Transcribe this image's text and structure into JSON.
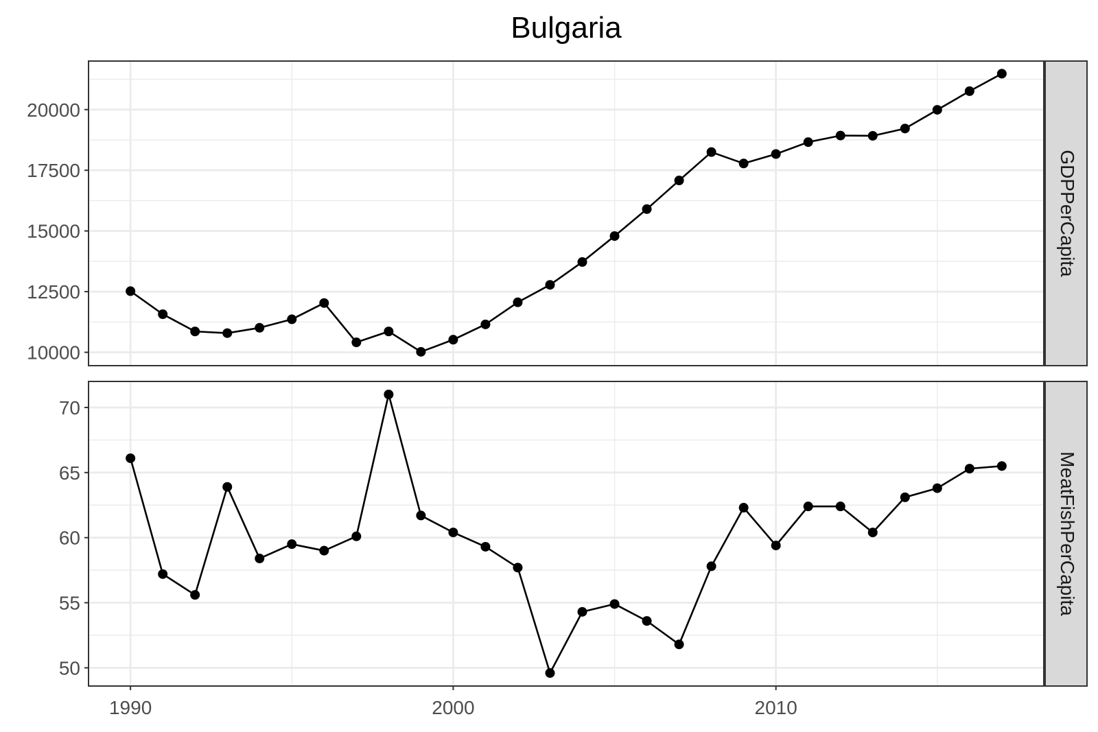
{
  "chart_data": {
    "type": "line",
    "title": "Bulgaria",
    "xlabel": "",
    "ylabel": "",
    "x": [
      1990,
      1991,
      1992,
      1993,
      1994,
      1995,
      1996,
      1997,
      1998,
      1999,
      2000,
      2001,
      2002,
      2003,
      2004,
      2005,
      2006,
      2007,
      2008,
      2009,
      2010,
      2011,
      2012,
      2013,
      2014,
      2015,
      2016,
      2017
    ],
    "x_ticks": [
      "1990",
      "2000",
      "2010"
    ],
    "xlim": [
      1988.7,
      2018.3
    ],
    "grid": true,
    "panels": [
      {
        "strip_label": "GDPPerCapita",
        "ylim": [
          9450,
          22000
        ],
        "y_ticks": [
          "10000",
          "12500",
          "15000",
          "17500",
          "20000"
        ],
        "values": [
          12520,
          11570,
          10860,
          10790,
          11010,
          11360,
          12030,
          10410,
          10860,
          10020,
          10520,
          11150,
          12060,
          12780,
          13720,
          14790,
          15900,
          17080,
          18250,
          17780,
          18170,
          18660,
          18930,
          18920,
          19220,
          19990,
          20760,
          21480
        ]
      },
      {
        "strip_label": "MeatFishPerCapita",
        "ylim": [
          48.6,
          72.0
        ],
        "y_ticks": [
          "50",
          "55",
          "60",
          "65",
          "70"
        ],
        "values": [
          66.1,
          57.2,
          55.6,
          63.9,
          58.4,
          59.5,
          59.0,
          60.1,
          71.0,
          61.7,
          60.4,
          59.3,
          57.7,
          49.6,
          54.3,
          54.9,
          53.6,
          51.8,
          57.8,
          62.3,
          59.4,
          62.4,
          62.4,
          60.4,
          63.1,
          63.8,
          65.3,
          65.5
        ]
      }
    ]
  }
}
